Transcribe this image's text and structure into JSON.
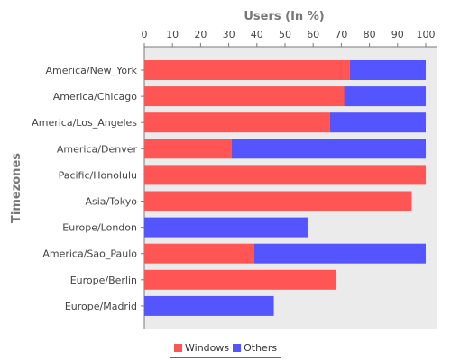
{
  "chart_data": {
    "type": "bar",
    "orientation": "horizontal",
    "stacked": true,
    "title": "",
    "xlabel": "Users (In %)",
    "ylabel": "Timezones",
    "xlim": [
      0,
      100
    ],
    "xticks": [
      0,
      10,
      20,
      30,
      40,
      50,
      60,
      70,
      80,
      90,
      100
    ],
    "x_axis_position": "top",
    "grid": false,
    "legend_position": "bottom",
    "categories": [
      "America/New_York",
      "America/Chicago",
      "America/Los_Angeles",
      "America/Denver",
      "Pacific/Honolulu",
      "Asia/Tokyo",
      "Europe/London",
      "America/Sao_Paulo",
      "Europe/Berlin",
      "Europe/Madrid"
    ],
    "series": [
      {
        "name": "Windows",
        "color": "#ff5555",
        "values": [
          73,
          71,
          66,
          31,
          100,
          95,
          0,
          39,
          68,
          0
        ]
      },
      {
        "name": "Others",
        "color": "#5555ff",
        "values": [
          27,
          29,
          34,
          69,
          0,
          0,
          58,
          61,
          0,
          46
        ]
      }
    ]
  }
}
